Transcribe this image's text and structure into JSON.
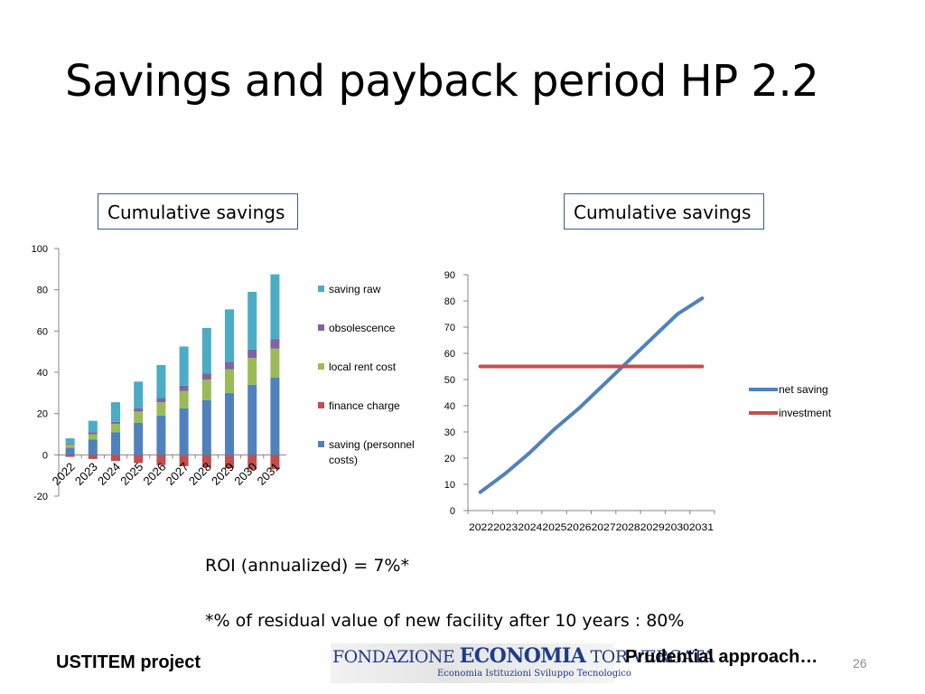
{
  "slide": {
    "title": "Savings and payback period HP 2.2",
    "page_number": "26"
  },
  "labels": {
    "left_box": "Cumulative savings",
    "right_box": "Cumulative savings"
  },
  "notes": {
    "roi": "ROI (annualized) = 7%*",
    "residual": "*% of residual value of new facility after 10 years : 80%"
  },
  "footer": {
    "project": "USTITEM project",
    "approach": "Prudential approach…"
  },
  "logo": {
    "line1_part1": "FONDAZIONE",
    "line1_part2": "ECONOMIA",
    "line1_part3": "TOR VERGATA",
    "line2": "Economia  Istituzioni  Sviluppo Tecnologico"
  },
  "colors": {
    "saving_raw": "#4bacc6",
    "obsolescence": "#8064a2",
    "local_rent_cost": "#9bbb59",
    "finance_charge": "#c0504d",
    "saving_personnel": "#4f81bd",
    "net_saving": "#4f81bd",
    "investment": "#c0504d"
  },
  "chart_data": [
    {
      "type": "bar",
      "stacked": true,
      "categories": [
        "2022",
        "2023",
        "2024",
        "2025",
        "2026",
        "2027",
        "2028",
        "2029",
        "2030",
        "2031"
      ],
      "ylim": [
        -20,
        100
      ],
      "yticks": [
        -20,
        0,
        20,
        40,
        60,
        80,
        100
      ],
      "legend_position": "right",
      "series": [
        {
          "name": "saving (personnel costs)",
          "name_lines": [
            "saving (personnel",
            "costs)"
          ],
          "color_key": "saving_personnel",
          "values": [
            3.5,
            7.5,
            11,
            15.5,
            19,
            22.5,
            26.5,
            30,
            34,
            37.5
          ]
        },
        {
          "name": "finance charge",
          "color_key": "finance_charge",
          "values": [
            -1,
            -2,
            -3,
            -4,
            -5,
            -5.5,
            -6,
            -6.5,
            -7,
            -7
          ]
        },
        {
          "name": "local rent cost",
          "color_key": "local_rent_cost",
          "values": [
            1.5,
            2.5,
            4,
            5.5,
            6.5,
            8.5,
            10,
            11.5,
            13,
            14
          ]
        },
        {
          "name": "obsolescence",
          "color_key": "obsolescence",
          "values": [
            0.5,
            1,
            1,
            1.5,
            2,
            2.5,
            3,
            3.5,
            4,
            4.5
          ]
        },
        {
          "name": "saving raw",
          "color_key": "saving_raw",
          "values": [
            2.5,
            5.5,
            9.5,
            13,
            16,
            19,
            22,
            25.5,
            28,
            31.5
          ]
        }
      ],
      "legend_order": [
        "saving raw",
        "obsolescence",
        "local rent cost",
        "finance charge",
        "saving (personnel costs)"
      ]
    },
    {
      "type": "line",
      "x": [
        "2022",
        "2023",
        "2024",
        "2025",
        "2026",
        "2027",
        "2028",
        "2029",
        "2030",
        "2031"
      ],
      "x_ticklabels": "2022202320242025202620272028202920302031",
      "ylim": [
        0,
        90
      ],
      "yticks": [
        0,
        10,
        20,
        30,
        40,
        50,
        60,
        70,
        80,
        90
      ],
      "legend_position": "right",
      "series": [
        {
          "name": "net saving",
          "color_key": "net_saving",
          "values": [
            7,
            14,
            22,
            31,
            39,
            48,
            57,
            66,
            75,
            81
          ]
        },
        {
          "name": "investment",
          "color_key": "investment",
          "values": [
            55,
            55,
            55,
            55,
            55,
            55,
            55,
            55,
            55,
            55
          ]
        }
      ]
    }
  ]
}
